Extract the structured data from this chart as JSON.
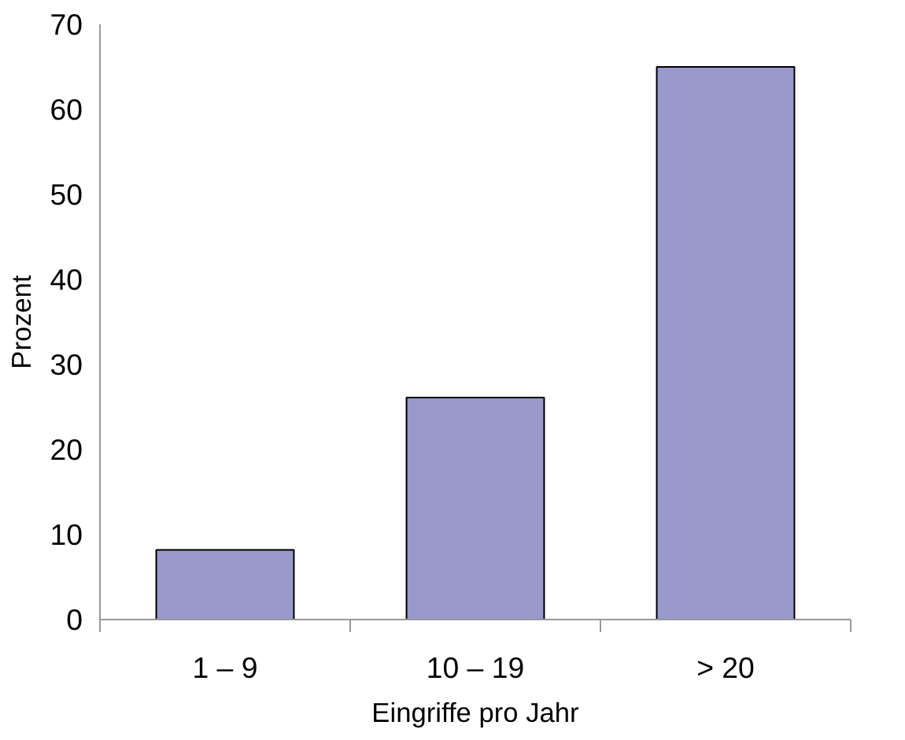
{
  "chart_data": {
    "type": "bar",
    "xlabel": "Eingriffe pro Jahr",
    "ylabel": "Prozent",
    "categories": [
      "1 – 9",
      "10 – 19",
      "> 20"
    ],
    "values": [
      8.2,
      26.1,
      65
    ],
    "color": "#9999cc",
    "ylim": [
      0,
      70
    ],
    "yticks": [
      0,
      10,
      20,
      30,
      40,
      50,
      60,
      70
    ],
    "grid": false
  }
}
